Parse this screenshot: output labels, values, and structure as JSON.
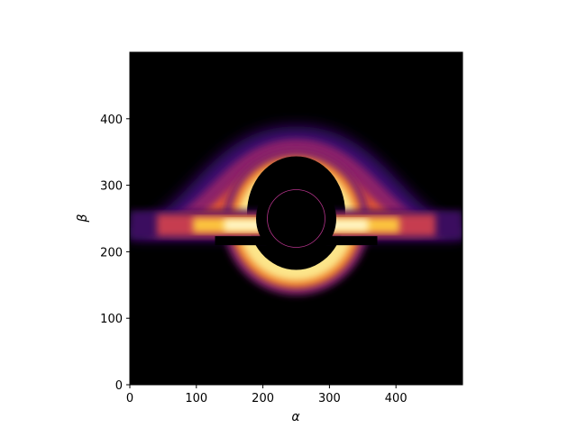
{
  "chart_data": {
    "type": "heatmap",
    "title": "",
    "xlabel": "α",
    "ylabel": "β",
    "xlim": [
      0,
      500
    ],
    "ylim": [
      0,
      500
    ],
    "x_ticks": [
      0,
      100,
      200,
      300,
      400
    ],
    "y_ticks": [
      0,
      100,
      200,
      300,
      400
    ],
    "colormap": "inferno",
    "background": "#000000",
    "features": {
      "center": [
        250,
        250
      ],
      "shadow_radius": 63,
      "photon_ring_radius": 65,
      "upper_arc_peak_beta": 330,
      "lower_arc_bottom_beta": 140,
      "disk_beta_band": [
        218,
        262
      ],
      "outer_glow_peak_beta": 388
    }
  }
}
